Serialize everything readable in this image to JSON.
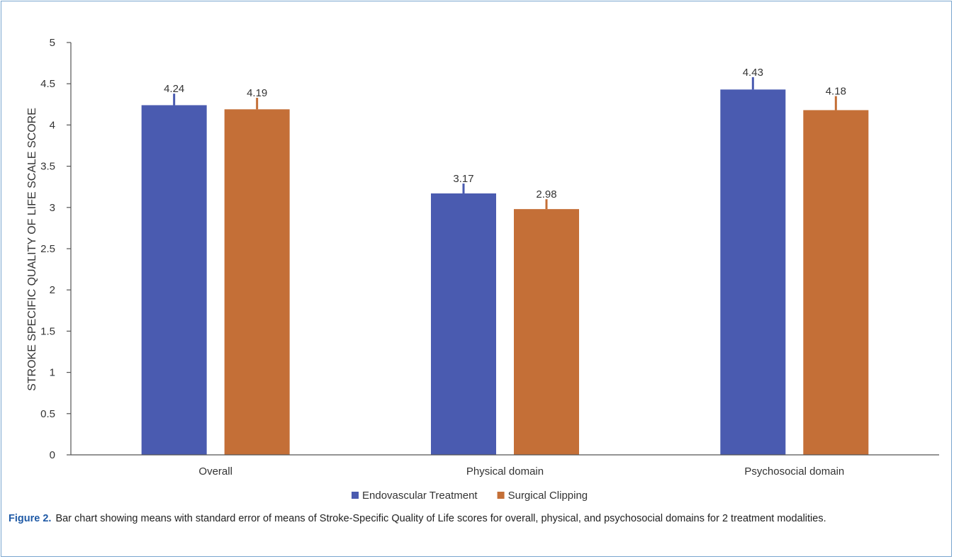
{
  "chart_data": {
    "type": "bar",
    "categories": [
      "Overall",
      "Physical domain",
      "Psychosocial domain"
    ],
    "series": [
      {
        "name": "Endovascular Treatment",
        "color": "#4a5bb0",
        "values": [
          4.24,
          3.17,
          4.43
        ],
        "error": [
          0.14,
          0.12,
          0.15
        ]
      },
      {
        "name": "Surgical Clipping",
        "color": "#c46f37",
        "values": [
          4.19,
          2.98,
          4.18
        ],
        "error": [
          0.14,
          0.12,
          0.17
        ]
      }
    ],
    "data_labels": {
      "Endovascular Treatment": [
        "4.24",
        "3.17",
        "4.43"
      ],
      "Surgical Clipping": [
        "4.19",
        "2.98",
        "4.18"
      ]
    },
    "title": "",
    "xlabel": "",
    "ylabel": "STROKE SPECIFIC QUALITY OF LIFE SCALE SCORE",
    "ylim": [
      0,
      5
    ],
    "yticks": [
      0,
      0.5,
      1,
      1.5,
      2,
      2.5,
      3,
      3.5,
      4,
      4.5,
      5
    ],
    "ytick_labels": [
      "0",
      "0.5",
      "1",
      "1.5",
      "2",
      "2.5",
      "3",
      "3.5",
      "4",
      "4.5",
      "5"
    ],
    "grid": false,
    "legend_position": "bottom"
  },
  "caption": {
    "label": "Figure 2.",
    "text": "Bar chart showing means with standard error of means of Stroke-Specific Quality of Life scores for overall, physical, and psychosocial domains for 2 treatment modalities."
  }
}
